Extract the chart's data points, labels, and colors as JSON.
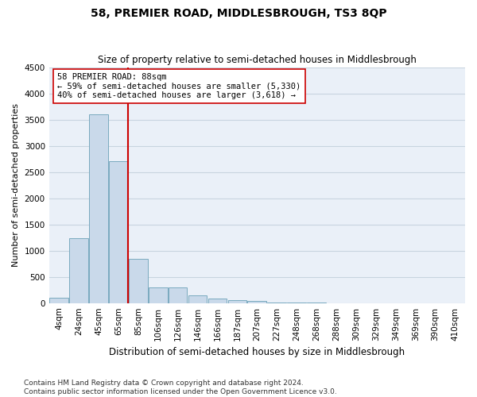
{
  "title": "58, PREMIER ROAD, MIDDLESBROUGH, TS3 8QP",
  "subtitle": "Size of property relative to semi-detached houses in Middlesbrough",
  "xlabel": "Distribution of semi-detached houses by size in Middlesbrough",
  "ylabel": "Number of semi-detached properties",
  "footer": "Contains HM Land Registry data © Crown copyright and database right 2024.\nContains public sector information licensed under the Open Government Licence v3.0.",
  "categories": [
    "4sqm",
    "24sqm",
    "45sqm",
    "65sqm",
    "85sqm",
    "106sqm",
    "126sqm",
    "146sqm",
    "166sqm",
    "187sqm",
    "207sqm",
    "227sqm",
    "248sqm",
    "268sqm",
    "288sqm",
    "309sqm",
    "329sqm",
    "349sqm",
    "369sqm",
    "390sqm",
    "410sqm"
  ],
  "values": [
    100,
    1230,
    3600,
    2700,
    850,
    300,
    300,
    145,
    80,
    60,
    45,
    10,
    5,
    5,
    2,
    1,
    1,
    1,
    1,
    1,
    1
  ],
  "bar_color": "#c9d9ea",
  "bar_edge_color": "#7aaabf",
  "vline_x_idx": 3,
  "annotation_text": "58 PREMIER ROAD: 88sqm\n← 59% of semi-detached houses are smaller (5,330)\n40% of semi-detached houses are larger (3,618) →",
  "ylim": [
    0,
    4500
  ],
  "yticks": [
    0,
    500,
    1000,
    1500,
    2000,
    2500,
    3000,
    3500,
    4000,
    4500
  ],
  "vline_color": "#cc0000",
  "annotation_box_color": "#ffffff",
  "annotation_box_edge": "#cc0000",
  "grid_color": "#c8d4e0",
  "bg_color": "#eaf0f8",
  "title_fontsize": 10,
  "subtitle_fontsize": 8.5,
  "ylabel_fontsize": 8,
  "xlabel_fontsize": 8.5,
  "tick_fontsize": 7.5,
  "annotation_fontsize": 7.5,
  "footer_fontsize": 6.5
}
